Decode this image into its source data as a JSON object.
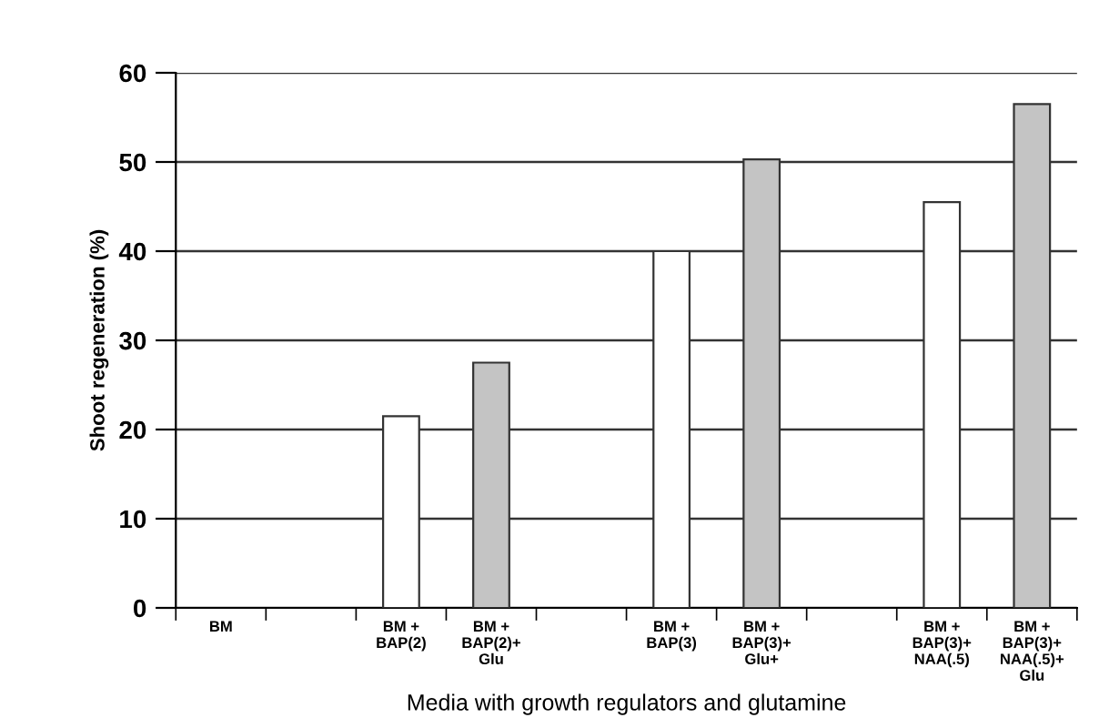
{
  "chart_data": {
    "type": "bar",
    "xlabel": "Media with growth regulators and glutamine",
    "ylabel": "Shoot regeneration (%)",
    "categories": [
      "BM",
      null,
      "BM +\nBAP(2)",
      "BM +\nBAP(2)+\nGlu",
      null,
      "BM +\nBAP(3)",
      "BM +\nBAP(3)+\nGlu+",
      null,
      "BM +\nBAP(3)+\nNAA(.5)",
      "BM +\nBAP(3)+\nNAA(.5)+\nGlu"
    ],
    "values": [
      0,
      null,
      21.5,
      27.5,
      null,
      40,
      50.3,
      null,
      45.5,
      56.5
    ],
    "colors": [
      "#ffffff",
      "#ffffff",
      "#ffffff",
      "#c4c4c4",
      "#ffffff",
      "#ffffff",
      "#c4c4c4",
      "#ffffff",
      "#ffffff",
      "#c4c4c4"
    ],
    "ylim": [
      0,
      60
    ],
    "yticks": [
      0,
      10,
      20,
      30,
      40,
      50,
      60
    ],
    "grid": "y",
    "legend": false
  }
}
